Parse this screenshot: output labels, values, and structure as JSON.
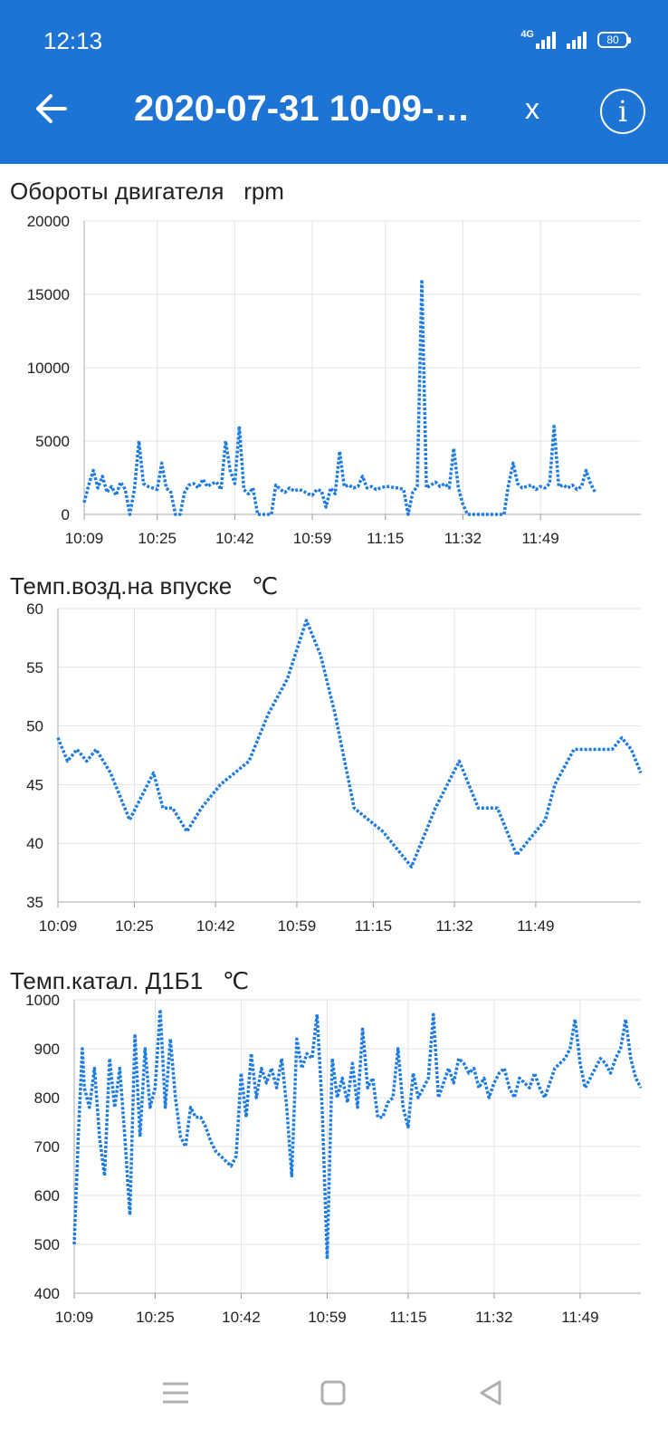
{
  "status_bar": {
    "time": "12:13",
    "network": "4G",
    "battery": "80"
  },
  "app_bar": {
    "title": "2020-07-31 10-09-…",
    "close_label": "x",
    "back_icon": "arrow-left-icon",
    "info_icon": "info-circle-icon"
  },
  "colors": {
    "app_bar": "#1e74d4",
    "series": "#1e7be0",
    "grid": "#e2e2e2"
  },
  "nav_bar": {
    "icons": [
      "menu-icon",
      "home-square-icon",
      "back-triangle-icon"
    ]
  },
  "charts": [
    {
      "title": "Обороты двигателя",
      "unit": "rpm",
      "chart_data": {
        "type": "line",
        "title": "Обороты двигателя",
        "unit": "rpm",
        "categories": [
          "10:09",
          "10:25",
          "10:42",
          "10:59",
          "11:15",
          "11:32",
          "11:49"
        ],
        "y_ticks": [
          "20000",
          "15000",
          "10000",
          "5000",
          "0"
        ],
        "ylim": [
          0,
          20000
        ],
        "xlim_minutes_from_1009": [
          0,
          112
        ],
        "series": [
          {
            "x": [
              0,
              1,
              2,
              3,
              4,
              5,
              6,
              7,
              8,
              9,
              10,
              11,
              12,
              13,
              14,
              15,
              16,
              17,
              18,
              19,
              20,
              21,
              22,
              23,
              24,
              25,
              26,
              27,
              28,
              29,
              30,
              31,
              32,
              33,
              34,
              35,
              36,
              37,
              38,
              39,
              40,
              41,
              42,
              43,
              44,
              45,
              46,
              47,
              48,
              49,
              50,
              51,
              52,
              53,
              54,
              55,
              56,
              57,
              58,
              59,
              60,
              61,
              62,
              63,
              64,
              65,
              66,
              67,
              68,
              69,
              70,
              71,
              72,
              73,
              74,
              75,
              76,
              77,
              78,
              79,
              80,
              81,
              82,
              83,
              84,
              85,
              86,
              87,
              88,
              89,
              90,
              91,
              92,
              93,
              94,
              95,
              96,
              97,
              98,
              99,
              100,
              101,
              102,
              103,
              104,
              105,
              106,
              107,
              108,
              109,
              110,
              111,
              112
            ],
            "y": [
              800,
              2000,
              3000,
              1800,
              2600,
              1500,
              1900,
              1300,
              2200,
              1700,
              0,
              1700,
              5000,
              2100,
              1900,
              1800,
              1700,
              3500,
              1800,
              1500,
              0,
              0,
              1500,
              2000,
              2100,
              1800,
              2400,
              1900,
              2100,
              2200,
              1700,
              5000,
              3000,
              2100,
              6000,
              1700,
              1400,
              1800,
              0,
              0,
              0,
              0,
              2000,
              1700,
              1500,
              1800,
              1600,
              1700,
              1600,
              1400,
              1300,
              1700,
              1600,
              500,
              1800,
              1400,
              4300,
              1900,
              2000,
              1800,
              1900,
              2600,
              1800,
              1900,
              1700,
              1800,
              1900,
              1900,
              1800,
              1800,
              1700,
              0,
              1500,
              1900,
              16000,
              1800,
              2000,
              2200,
              1900,
              2100,
              1800,
              4500,
              1800,
              700,
              0,
              0,
              0,
              0,
              0,
              0,
              0,
              0,
              0,
              2000,
              3500,
              2100,
              1800,
              1900,
              2000,
              1700,
              1900,
              1800,
              2100,
              6000,
              1900,
              2000,
              1800,
              2000,
              1700,
              1900,
              3000,
              2100,
              1500
            ]
          }
        ]
      }
    },
    {
      "title": "Темп.возд.на впуске",
      "unit": "℃",
      "chart_data": {
        "type": "line",
        "title": "Темп.возд.на впуске",
        "unit": "℃",
        "categories": [
          "10:09",
          "10:25",
          "10:42",
          "10:59",
          "11:15",
          "11:32",
          "11:49"
        ],
        "y_ticks": [
          "60",
          "55",
          "50",
          "45",
          "40",
          "35"
        ],
        "ylim": [
          35,
          60
        ],
        "xlim_minutes_from_1009": [
          0,
          112
        ],
        "series": [
          {
            "x": [
              0,
              2,
              4,
              6,
              8,
              11,
              15,
              20,
              22,
              24,
              27,
              30,
              34,
              40,
              44,
              48,
              52,
              55,
              58,
              62,
              68,
              74,
              76,
              79,
              84,
              88,
              92,
              96,
              102,
              104,
              108,
              111,
              114,
              116,
              118,
              120,
              122
            ],
            "y": [
              49,
              47,
              48,
              47,
              48,
              46,
              42,
              46,
              43,
              43,
              41,
              43,
              45,
              47,
              51,
              54,
              59,
              56,
              51,
              43,
              41,
              38,
              40,
              43,
              47,
              43,
              43,
              39,
              42,
              45,
              48,
              48,
              48,
              48,
              49,
              48,
              46
            ]
          }
        ]
      }
    },
    {
      "title": "Темп.катал. Д1Б1",
      "unit": "℃",
      "chart_data": {
        "type": "line",
        "title": "Темп.катал. Д1Б1",
        "unit": "℃",
        "categories": [
          "10:09",
          "10:25",
          "10:42",
          "10:59",
          "11:15",
          "11:32",
          "11:49"
        ],
        "y_ticks": [
          "1000",
          "900",
          "800",
          "700",
          "600",
          "500",
          "400"
        ],
        "ylim": [
          400,
          1000
        ],
        "xlim_minutes_from_1009": [
          0,
          112
        ],
        "series": [
          {
            "x": [
              0,
              0.8,
              1.6,
              2,
              3,
              4,
              5,
              6,
              7,
              8,
              9,
              10,
              11,
              12,
              13,
              14,
              15,
              16,
              17,
              18,
              19,
              20,
              21,
              22,
              23,
              24,
              25,
              26,
              27,
              28,
              29,
              30,
              31,
              32,
              33,
              34,
              35,
              36,
              37,
              38,
              39,
              40,
              41,
              42,
              43,
              44,
              45,
              46,
              47,
              48,
              49,
              50,
              51,
              52,
              53,
              54,
              55,
              56,
              57,
              58,
              59,
              60,
              61,
              62,
              63,
              64,
              65,
              66,
              67,
              68,
              69,
              70,
              71,
              72,
              73,
              74,
              75,
              76,
              77,
              78,
              79,
              80,
              81,
              82,
              83,
              84,
              85,
              86,
              87,
              88,
              89,
              90,
              91,
              92,
              93,
              94,
              95,
              96,
              97,
              98,
              99,
              100,
              101,
              102,
              103,
              104,
              105,
              106,
              107,
              108,
              109,
              110,
              111,
              112
            ],
            "y": [
              500,
              720,
              900,
              820,
              780,
              860,
              720,
              640,
              880,
              780,
              860,
              720,
              560,
              930,
              720,
              900,
              780,
              820,
              980,
              780,
              920,
              800,
              720,
              700,
              780,
              760,
              760,
              740,
              710,
              690,
              680,
              670,
              660,
              680,
              850,
              760,
              890,
              800,
              860,
              830,
              860,
              820,
              880,
              780,
              640,
              920,
              860,
              890,
              880,
              970,
              780,
              470,
              880,
              800,
              840,
              790,
              870,
              780,
              940,
              820,
              840,
              760,
              760,
              790,
              800,
              900,
              780,
              740,
              850,
              800,
              820,
              840,
              970,
              800,
              830,
              860,
              830,
              880,
              870,
              850,
              860,
              820,
              840,
              800,
              830,
              850,
              860,
              820,
              800,
              840,
              830,
              820,
              850,
              820,
              800,
              830,
              860,
              870,
              880,
              900,
              960,
              870,
              820,
              840,
              860,
              880,
              870,
              850,
              880,
              900,
              960,
              880,
              840,
              820
            ]
          }
        ]
      }
    }
  ]
}
